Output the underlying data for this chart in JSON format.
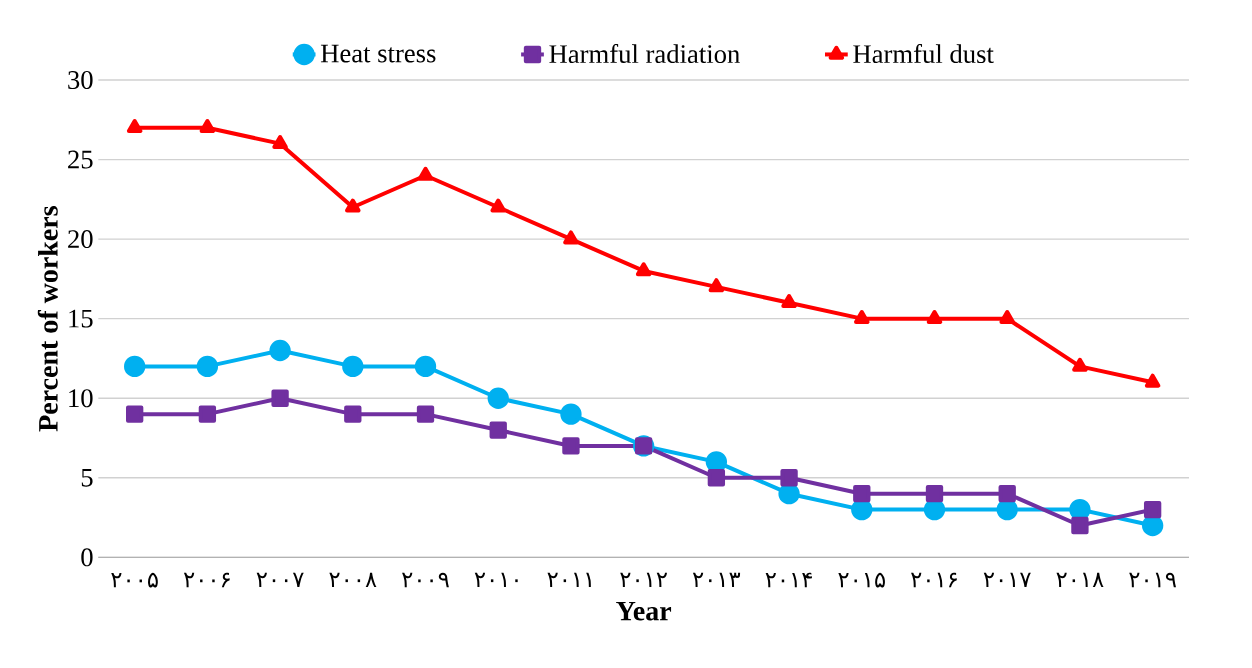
{
  "chart_data": {
    "type": "line",
    "xlabel": "Year",
    "ylabel": "Percent of workers",
    "categories": [
      "۲۰۰۵",
      "۲۰۰۶",
      "۲۰۰۷",
      "۲۰۰۸",
      "۲۰۰۹",
      "۲۰۱۰",
      "۲۰۱۱",
      "۲۰۱۲",
      "۲۰۱۳",
      "۲۰۱۴",
      "۲۰۱۵",
      "۲۰۱۶",
      "۲۰۱۷",
      "۲۰۱۸",
      "۲۰۱۹"
    ],
    "series": [
      {
        "name": "Heat stress",
        "color": "#00b0f0",
        "marker": "circle",
        "values": [
          12,
          12,
          13,
          12,
          12,
          10,
          9,
          7,
          6,
          4,
          3,
          3,
          3,
          3,
          2
        ]
      },
      {
        "name": "Harmful radiation",
        "color": "#7030a0",
        "marker": "square",
        "values": [
          9,
          9,
          10,
          9,
          9,
          8,
          7,
          7,
          5,
          5,
          4,
          4,
          4,
          2,
          3
        ]
      },
      {
        "name": "Harmful dust",
        "color": "#ff0000",
        "marker": "triangle",
        "values": [
          27,
          27,
          26,
          22,
          24,
          22,
          20,
          18,
          17,
          16,
          15,
          15,
          15,
          12,
          11
        ]
      }
    ],
    "ylim": [
      0,
      30
    ],
    "yticks": [
      0,
      5,
      10,
      15,
      20,
      25,
      30
    ],
    "grid": "y",
    "legend": "top",
    "line_style": "solid"
  }
}
